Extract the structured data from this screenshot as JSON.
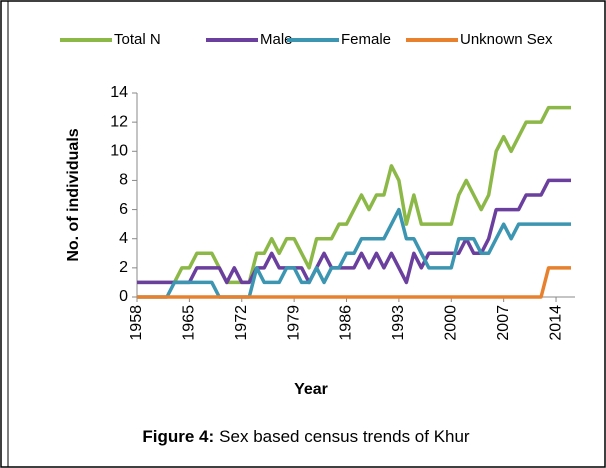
{
  "chart_data": {
    "type": "line",
    "xlabel": "Year",
    "ylabel": "No. of individuals",
    "caption_label": "Figure 4:",
    "caption": "Sex based census trends of Khur",
    "x": [
      1958,
      1959,
      1960,
      1961,
      1962,
      1963,
      1964,
      1965,
      1966,
      1967,
      1968,
      1969,
      1970,
      1971,
      1972,
      1973,
      1974,
      1975,
      1976,
      1977,
      1978,
      1979,
      1980,
      1981,
      1982,
      1983,
      1984,
      1985,
      1986,
      1987,
      1988,
      1989,
      1990,
      1991,
      1992,
      1993,
      1994,
      1995,
      1996,
      1997,
      1998,
      1999,
      2000,
      2001,
      2002,
      2003,
      2004,
      2005,
      2006,
      2007,
      2008,
      2009,
      2010,
      2011,
      2012,
      2013,
      2014,
      2015,
      2016
    ],
    "series": [
      {
        "name": "Total N",
        "color": "#8cb848",
        "values": [
          1,
          1,
          1,
          1,
          1,
          1,
          2,
          2,
          3,
          3,
          3,
          2,
          1,
          1,
          1,
          1,
          3,
          3,
          4,
          3,
          4,
          4,
          3,
          2,
          4,
          4,
          4,
          5,
          5,
          6,
          7,
          6,
          7,
          7,
          9,
          8,
          5,
          7,
          5,
          5,
          5,
          5,
          5,
          7,
          8,
          7,
          6,
          7,
          10,
          11,
          10,
          11,
          12,
          12,
          12,
          13,
          13,
          13,
          13
        ]
      },
      {
        "name": "Male",
        "color": "#6b3f9e",
        "values": [
          1,
          1,
          1,
          1,
          1,
          1,
          1,
          1,
          2,
          2,
          2,
          2,
          1,
          2,
          1,
          1,
          2,
          2,
          3,
          2,
          2,
          2,
          2,
          1,
          2,
          3,
          2,
          2,
          2,
          2,
          3,
          2,
          3,
          2,
          3,
          2,
          1,
          3,
          2,
          3,
          3,
          3,
          3,
          3,
          4,
          3,
          3,
          4,
          6,
          6,
          6,
          6,
          7,
          7,
          7,
          8,
          8,
          8,
          8
        ]
      },
      {
        "name": "Female",
        "color": "#3c95b1",
        "values": [
          0,
          0,
          0,
          0,
          0,
          1,
          1,
          1,
          1,
          1,
          1,
          0,
          0,
          0,
          0,
          0,
          2,
          1,
          1,
          1,
          2,
          2,
          1,
          1,
          2,
          1,
          2,
          2,
          3,
          3,
          4,
          4,
          4,
          4,
          5,
          6,
          4,
          4,
          3,
          2,
          2,
          2,
          2,
          4,
          4,
          4,
          3,
          3,
          4,
          5,
          4,
          5,
          5,
          5,
          5,
          5,
          5,
          5,
          5
        ]
      },
      {
        "name": "Unknown Sex",
        "color": "#e8812e",
        "values": [
          0,
          0,
          0,
          0,
          0,
          0,
          0,
          0,
          0,
          0,
          0,
          0,
          0,
          0,
          0,
          0,
          0,
          0,
          0,
          0,
          0,
          0,
          0,
          0,
          0,
          0,
          0,
          0,
          0,
          0,
          0,
          0,
          0,
          0,
          0,
          0,
          0,
          0,
          0,
          0,
          0,
          0,
          0,
          0,
          0,
          0,
          0,
          0,
          0,
          0,
          0,
          0,
          0,
          0,
          0,
          2,
          2,
          2,
          2
        ]
      }
    ],
    "xlim": [
      1958,
      2016
    ],
    "xticks": [
      1958,
      1965,
      1972,
      1979,
      1986,
      1993,
      2000,
      2007,
      2014
    ],
    "ylim": [
      0,
      14
    ],
    "yticks": [
      0,
      2,
      4,
      6,
      8,
      10,
      12,
      14
    ],
    "grid": false,
    "legend": "top"
  }
}
